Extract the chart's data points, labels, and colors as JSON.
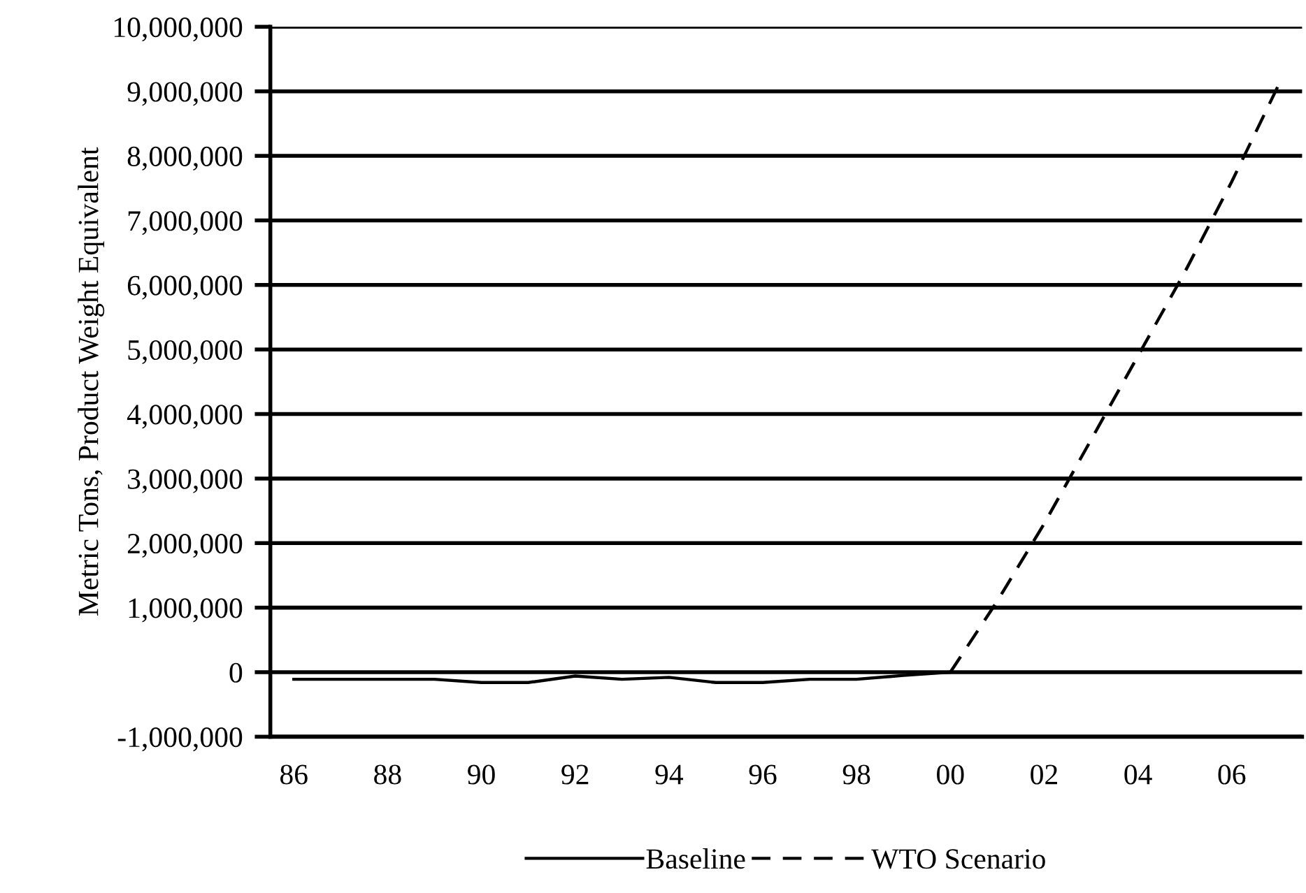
{
  "chart_data": {
    "type": "line",
    "ylabel": "Metric Tons, Product Weight Equivalent",
    "x": [
      1986,
      1987,
      1988,
      1989,
      1990,
      1991,
      1992,
      1993,
      1994,
      1995,
      1996,
      1997,
      1998,
      1999,
      2000,
      2001,
      2002,
      2003,
      2004,
      2005,
      2006,
      2007
    ],
    "series": [
      {
        "name": "Baseline",
        "color": "#000000",
        "line_style": "solid",
        "values": [
          -110000,
          -110000,
          -110000,
          -110000,
          -160000,
          -160000,
          -60000,
          -110000,
          -80000,
          -160000,
          -160000,
          -110000,
          -110000,
          -50000,
          0,
          null,
          null,
          null,
          null,
          null,
          null,
          null
        ]
      },
      {
        "name": "WTO Scenario",
        "color": "#000000",
        "line_style": "dashed",
        "values": [
          null,
          null,
          null,
          null,
          null,
          null,
          null,
          null,
          null,
          null,
          null,
          null,
          null,
          null,
          0,
          1100000,
          2300000,
          3600000,
          4900000,
          6200000,
          7600000,
          9100000
        ]
      }
    ],
    "xlim": [
      1985.5,
      2007.5
    ],
    "xticks": [
      {
        "value": 1986,
        "label": "86"
      },
      {
        "value": 1988,
        "label": "88"
      },
      {
        "value": 1990,
        "label": "90"
      },
      {
        "value": 1992,
        "label": "92"
      },
      {
        "value": 1994,
        "label": "94"
      },
      {
        "value": 1996,
        "label": "96"
      },
      {
        "value": 1998,
        "label": "98"
      },
      {
        "value": 2000,
        "label": "00"
      },
      {
        "value": 2002,
        "label": "02"
      },
      {
        "value": 2004,
        "label": "04"
      },
      {
        "value": 2006,
        "label": "06"
      }
    ],
    "ylim": [
      -1000000,
      10000000
    ],
    "yticks": [
      {
        "value": -1000000,
        "label": "-1,000,000"
      },
      {
        "value": 0,
        "label": "0"
      },
      {
        "value": 1000000,
        "label": "1,000,000"
      },
      {
        "value": 2000000,
        "label": "2,000,000"
      },
      {
        "value": 3000000,
        "label": "3,000,000"
      },
      {
        "value": 4000000,
        "label": "4,000,000"
      },
      {
        "value": 5000000,
        "label": "5,000,000"
      },
      {
        "value": 6000000,
        "label": "6,000,000"
      },
      {
        "value": 7000000,
        "label": "7,000,000"
      },
      {
        "value": 8000000,
        "label": "8,000,000"
      },
      {
        "value": 9000000,
        "label": "9,000,000"
      },
      {
        "value": 10000000,
        "label": "10,000,000"
      }
    ],
    "grid": "y",
    "legend": "bottom",
    "marker": "none"
  }
}
